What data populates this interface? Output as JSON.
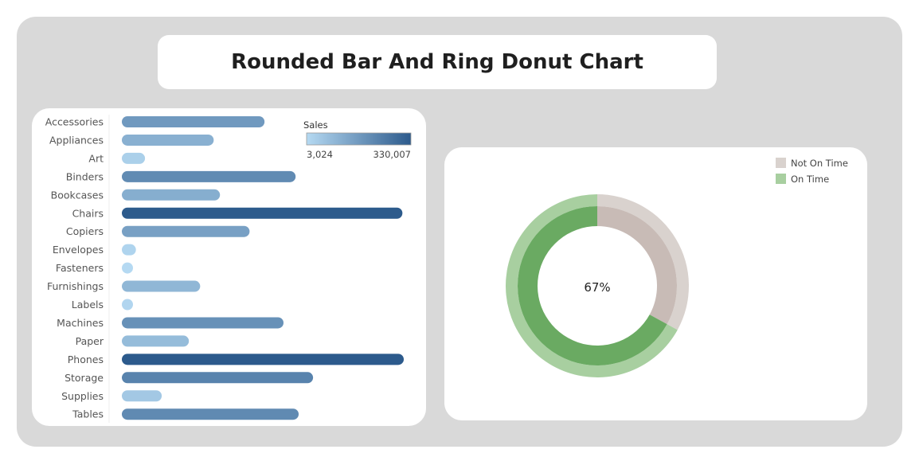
{
  "page": {
    "title": "Rounded Bar And Ring Donut Chart"
  },
  "chart_data": [
    {
      "type": "bar",
      "orientation": "horizontal",
      "categories": [
        "Accessories",
        "Appliances",
        "Art",
        "Binders",
        "Bookcases",
        "Chairs",
        "Copiers",
        "Envelopes",
        "Fasteners",
        "Furnishings",
        "Labels",
        "Machines",
        "Paper",
        "Phones",
        "Storage",
        "Supplies",
        "Tables"
      ],
      "values": [
        167026,
        107532,
        27119,
        203413,
        114880,
        328449,
        149528,
        16476,
        3024,
        91705,
        12486,
        189239,
        78479,
        330007,
        223844,
        46674,
        206966
      ],
      "color_legend": {
        "title": "Sales",
        "min": 3024,
        "max": 330007,
        "min_label": "3,024",
        "max_label": "330,007",
        "color_low": "#b5d9f2",
        "color_high": "#2c5a8c"
      },
      "legend_position": "top-right",
      "grid": false
    },
    {
      "type": "pie",
      "style": "ring-donut",
      "categories": [
        "Not On Time",
        "On Time"
      ],
      "values": [
        33,
        67
      ],
      "center_label": "67%",
      "colors": {
        "Not On Time": "#d9d2ce",
        "On Time": "#a8cfa0"
      },
      "inner_colors": {
        "Not On Time": "#c8bbb6",
        "On Time": "#6aaa62"
      },
      "legend_position": "top-right"
    }
  ]
}
